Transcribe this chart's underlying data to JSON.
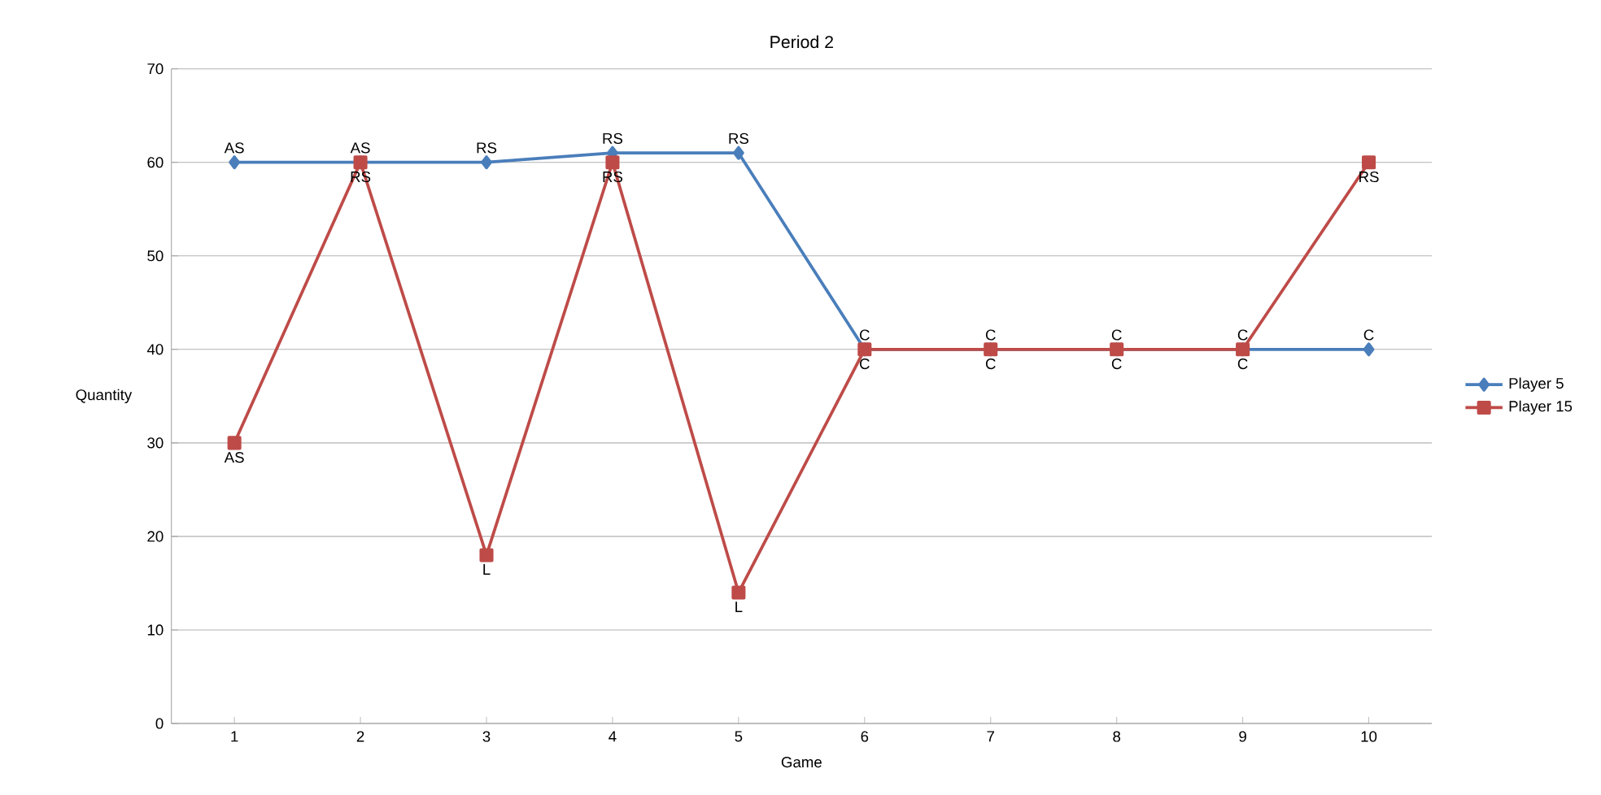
{
  "chart_data": {
    "type": "line",
    "title": "Period 2",
    "xlabel": "Game",
    "ylabel": "Quantity",
    "categories": [
      "1",
      "2",
      "3",
      "4",
      "5",
      "6",
      "7",
      "8",
      "9",
      "10"
    ],
    "series": [
      {
        "name": "Player 5",
        "color": "#4a7ebb",
        "marker": "diamond",
        "values": [
          60,
          60,
          60,
          61,
          61,
          40,
          40,
          40,
          40,
          40
        ],
        "value_labels": [
          "AS",
          "AS",
          "RS",
          "RS",
          "RS",
          "C",
          "C",
          "C",
          "C",
          "C"
        ]
      },
      {
        "name": "Player 15",
        "color": "#be4b48",
        "marker": "square",
        "values": [
          30,
          60,
          18,
          60,
          14,
          40,
          40,
          40,
          40,
          60
        ],
        "value_labels": [
          "AS",
          "RS",
          "L",
          "RS",
          "L",
          "C",
          "C",
          "C",
          "C",
          "RS"
        ]
      }
    ],
    "ylim": [
      0,
      70
    ],
    "yticks": [
      0,
      10,
      20,
      30,
      40,
      50,
      60,
      70
    ],
    "grid": "y",
    "legend": "right",
    "line_style": "solid"
  }
}
